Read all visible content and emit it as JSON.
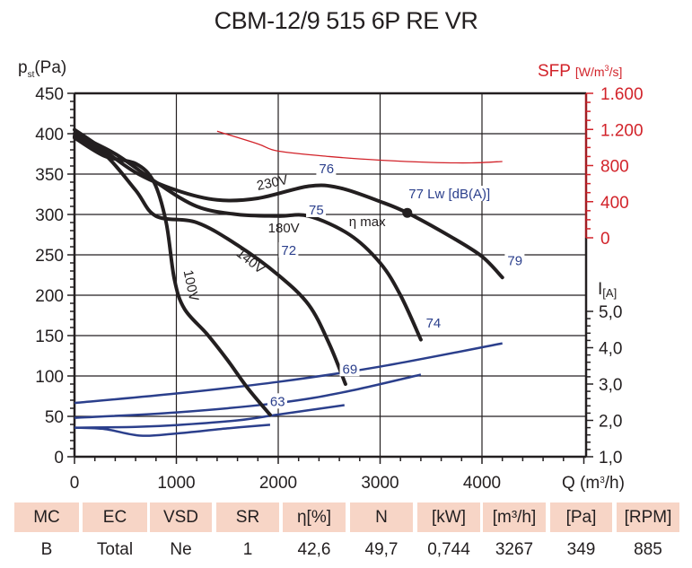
{
  "chart_data": {
    "type": "line",
    "title": "CBM-12/9 515 6P RE VR",
    "xlabel": "Q (m³/h)",
    "ylabel": "p_st(Pa)",
    "y2label": "SFP [W/m³/s]",
    "y3label": "I[A]",
    "xlim": [
      0,
      5000
    ],
    "ylim": [
      0,
      450
    ],
    "y2lim": [
      0,
      1600
    ],
    "y3lim": [
      1.0,
      5.0
    ],
    "x_ticks": [
      "0",
      "1000",
      "2000",
      "3000",
      "4000"
    ],
    "y_ticks": [
      "0",
      "50",
      "100",
      "150",
      "200",
      "250",
      "300",
      "350",
      "400",
      "450"
    ],
    "y2_ticks": [
      "0",
      "400",
      "800",
      "1.200",
      "1.600"
    ],
    "y3_ticks": [
      "1,0",
      "2,0",
      "3,0",
      "4,0",
      "5,0"
    ],
    "grid": true,
    "pressure_series": [
      {
        "name": "230V",
        "points": [
          [
            0,
            405
          ],
          [
            200,
            388
          ],
          [
            600,
            352
          ],
          [
            1000,
            330
          ],
          [
            1400,
            318
          ],
          [
            1800,
            320
          ],
          [
            2300,
            335
          ],
          [
            2600,
            333
          ],
          [
            3000,
            316
          ],
          [
            3267,
            302
          ],
          [
            3700,
            272
          ],
          [
            4000,
            248
          ],
          [
            4200,
            222
          ]
        ]
      },
      {
        "name": "180V",
        "points": [
          [
            0,
            400
          ],
          [
            400,
            375
          ],
          [
            800,
            340
          ],
          [
            1200,
            310
          ],
          [
            1600,
            300
          ],
          [
            2000,
            298
          ],
          [
            2300,
            298
          ],
          [
            2700,
            275
          ],
          [
            3000,
            240
          ],
          [
            3200,
            200
          ],
          [
            3400,
            145
          ]
        ]
      },
      {
        "name": "140V",
        "points": [
          [
            0,
            397
          ],
          [
            300,
            374
          ],
          [
            600,
            330
          ],
          [
            800,
            298
          ],
          [
            1200,
            290
          ],
          [
            1600,
            262
          ],
          [
            2000,
            225
          ],
          [
            2300,
            188
          ],
          [
            2500,
            140
          ],
          [
            2660,
            90
          ]
        ]
      },
      {
        "name": "100V",
        "points": [
          [
            0,
            395
          ],
          [
            300,
            372
          ],
          [
            600,
            363
          ],
          [
            780,
            340
          ],
          [
            900,
            290
          ],
          [
            980,
            220
          ],
          [
            1080,
            183
          ],
          [
            1300,
            152
          ],
          [
            1500,
            120
          ],
          [
            1700,
            85
          ],
          [
            1920,
            52
          ]
        ]
      }
    ],
    "sfp_series": {
      "name": "SFP",
      "points": [
        [
          1400,
          1180
        ],
        [
          1800,
          1040
        ],
        [
          2000,
          960
        ],
        [
          2500,
          900
        ],
        [
          3000,
          860
        ],
        [
          3500,
          835
        ],
        [
          3900,
          830
        ],
        [
          4200,
          845
        ]
      ]
    },
    "current_series": [
      {
        "name": "I 230V",
        "points": [
          [
            0,
            2.48
          ],
          [
            1000,
            2.74
          ],
          [
            2000,
            3.06
          ],
          [
            3000,
            3.48
          ],
          [
            4200,
            4.12
          ]
        ]
      },
      {
        "name": "I 180V",
        "points": [
          [
            0,
            2.07
          ],
          [
            1000,
            2.22
          ],
          [
            2000,
            2.48
          ],
          [
            2650,
            2.78
          ],
          [
            3400,
            3.26
          ]
        ]
      },
      {
        "name": "I 140V",
        "points": [
          [
            0,
            1.8
          ],
          [
            600,
            1.82
          ],
          [
            1000,
            1.87
          ],
          [
            1600,
            2.0
          ],
          [
            2000,
            2.16
          ],
          [
            2650,
            2.42
          ]
        ]
      },
      {
        "name": "I 100V",
        "points": [
          [
            0,
            1.8
          ],
          [
            300,
            1.76
          ],
          [
            650,
            1.58
          ],
          [
            1000,
            1.64
          ],
          [
            1500,
            1.78
          ],
          [
            1920,
            1.88
          ]
        ]
      }
    ],
    "noise_labels": [
      {
        "text": "76",
        "x": 2400,
        "y": 351
      },
      {
        "text": "75",
        "x": 2300,
        "y": 300
      },
      {
        "text": "72",
        "x": 2030,
        "y": 250
      },
      {
        "text": "77 Lw [dB(A)]",
        "x": 3280,
        "y": 320
      },
      {
        "text": "79",
        "x": 4250,
        "y": 237
      },
      {
        "text": "74",
        "x": 3450,
        "y": 160
      },
      {
        "text": "69",
        "x": 2630,
        "y": 103
      },
      {
        "text": "63",
        "x": 1920,
        "y": 63
      }
    ],
    "curve_labels": [
      {
        "text": "230V",
        "x": 1800,
        "y": 330
      },
      {
        "text": "180V",
        "x": 1900,
        "y": 278
      },
      {
        "text": "140V",
        "x": 1580,
        "y": 250
      },
      {
        "text": "100V",
        "x": 1070,
        "y": 230
      }
    ],
    "eta_max": {
      "label": "η max",
      "x": 3267,
      "y": 302
    }
  },
  "table": {
    "headers": [
      "MC",
      "EC",
      "VSD",
      "SR",
      "η[%]",
      "N",
      "[kW]",
      "[m³/h]",
      "[Pa]",
      "[RPM]"
    ],
    "values": [
      "B",
      "Total",
      "Ne",
      "1",
      "42,6",
      "49,7",
      "0,744",
      "3267",
      "349",
      "885"
    ]
  },
  "colors": {
    "pressure": "#231f20",
    "sfp": "#d2232a",
    "current": "#2b3f8c",
    "table_header": "#f7d5c6"
  }
}
